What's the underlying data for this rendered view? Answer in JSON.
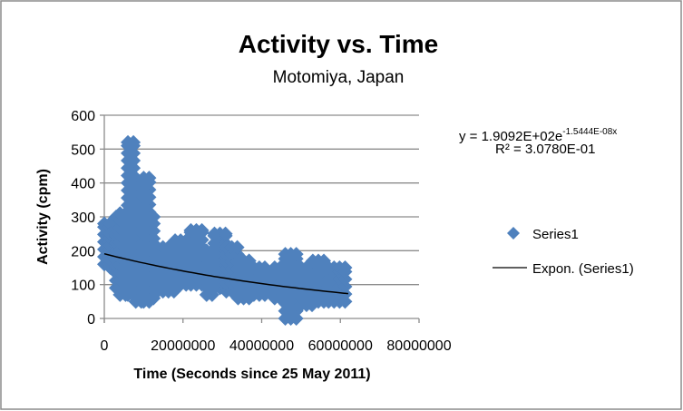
{
  "chart_data": {
    "type": "scatter",
    "title": "Activity vs. Time",
    "subtitle": "Motomiya, Japan",
    "xlabel": "Time (Seconds since 25 May 2011)",
    "ylabel": "Activity (cpm)",
    "xlim": [
      0,
      80000000
    ],
    "ylim": [
      0,
      600
    ],
    "x_ticks": [
      0,
      20000000,
      40000000,
      60000000,
      80000000
    ],
    "x_tick_labels": [
      "0",
      "20000000",
      "40000000",
      "60000000",
      "80000000"
    ],
    "y_ticks": [
      0,
      100,
      200,
      300,
      400,
      500,
      600
    ],
    "y_tick_labels": [
      "0",
      "100",
      "200",
      "300",
      "400",
      "500",
      "600"
    ],
    "grid": "horizontal",
    "legend_position": "right",
    "series": [
      {
        "name": "Series1",
        "marker": "diamond",
        "color": "#4f81bd",
        "note_bands": "point cloud approximated as bands of x range with y min/max (data units)",
        "bands": [
          {
            "x_start": 0,
            "x_end": 1500000,
            "y_min": 160,
            "y_max": 280
          },
          {
            "x_start": 1500000,
            "x_end": 3000000,
            "y_min": 150,
            "y_max": 250
          },
          {
            "x_start": 3000000,
            "x_end": 4000000,
            "y_min": 90,
            "y_max": 300
          },
          {
            "x_start": 4000000,
            "x_end": 6000000,
            "y_min": 70,
            "y_max": 310
          },
          {
            "x_start": 6000000,
            "x_end": 8000000,
            "y_min": 70,
            "y_max": 520
          },
          {
            "x_start": 8000000,
            "x_end": 10000000,
            "y_min": 50,
            "y_max": 400
          },
          {
            "x_start": 10000000,
            "x_end": 12500000,
            "y_min": 50,
            "y_max": 415
          },
          {
            "x_start": 12500000,
            "x_end": 13500000,
            "y_min": 60,
            "y_max": 300
          },
          {
            "x_start": 13500000,
            "x_end": 18000000,
            "y_min": 80,
            "y_max": 210
          },
          {
            "x_start": 18000000,
            "x_end": 22000000,
            "y_min": 100,
            "y_max": 230
          },
          {
            "x_start": 22000000,
            "x_end": 26000000,
            "y_min": 100,
            "y_max": 260
          },
          {
            "x_start": 26000000,
            "x_end": 28000000,
            "y_min": 70,
            "y_max": 200
          },
          {
            "x_start": 28000000,
            "x_end": 31000000,
            "y_min": 90,
            "y_max": 250
          },
          {
            "x_start": 31000000,
            "x_end": 34000000,
            "y_min": 80,
            "y_max": 210
          },
          {
            "x_start": 34000000,
            "x_end": 38000000,
            "y_min": 60,
            "y_max": 170
          },
          {
            "x_start": 38000000,
            "x_end": 41500000,
            "y_min": 70,
            "y_max": 150
          },
          {
            "x_start": 43300000,
            "x_end": 46000000,
            "y_min": 60,
            "y_max": 150
          },
          {
            "x_start": 46000000,
            "x_end": 50000000,
            "y_min": 0,
            "y_max": 190
          },
          {
            "x_start": 50000000,
            "x_end": 53000000,
            "y_min": 40,
            "y_max": 150
          },
          {
            "x_start": 53000000,
            "x_end": 57000000,
            "y_min": 50,
            "y_max": 170
          },
          {
            "x_start": 57000000,
            "x_end": 62000000,
            "y_min": 50,
            "y_max": 150
          }
        ]
      },
      {
        "name": "Expon. (Series1)",
        "type": "trendline",
        "color": "#000000",
        "a": 190.92,
        "b": -1.5444e-08,
        "x_range": [
          0,
          62000000
        ]
      }
    ],
    "legend": [
      "Series1",
      "Expon. (Series1)"
    ],
    "annotations": {
      "equation_prefix": "y = 1.9092E+02e",
      "equation_exponent": "-1.5444E-08x",
      "r2_label": "R² = 3.0780E-01"
    }
  }
}
